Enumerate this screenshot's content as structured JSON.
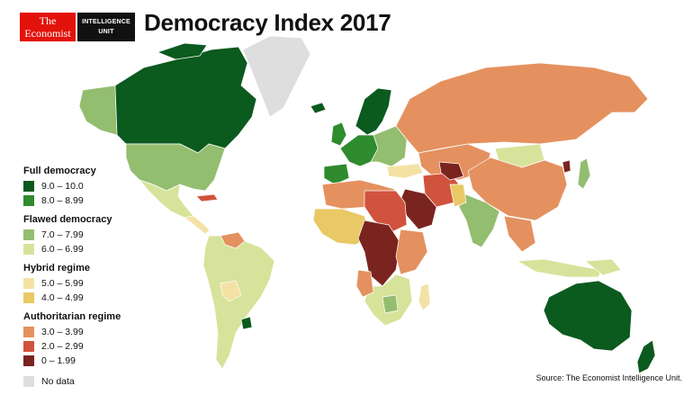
{
  "header": {
    "logo_economist": "The Economist",
    "logo_eiu_line1": "INTELLIGENCE",
    "logo_eiu_line2": "UNIT",
    "title": "Democracy Index 2017"
  },
  "legend": {
    "groups": [
      {
        "heading": "Full democracy",
        "items": [
          {
            "label": "9.0 – 10.0",
            "color": "#0b5a1e"
          },
          {
            "label": "8.0 – 8.99",
            "color": "#2e8b2e"
          }
        ]
      },
      {
        "heading": "Flawed democracy",
        "items": [
          {
            "label": "7.0 – 7.99",
            "color": "#93bd6f"
          },
          {
            "label": "6.0 – 6.99",
            "color": "#d7e39a"
          }
        ]
      },
      {
        "heading": "Hybrid regime",
        "items": [
          {
            "label": "5.0 – 5.99",
            "color": "#f3e2a4"
          },
          {
            "label": "4.0 – 4.99",
            "color": "#e8c965"
          }
        ]
      },
      {
        "heading": "Authoritarian regime",
        "items": [
          {
            "label": "3.0 – 3.99",
            "color": "#e4915f"
          },
          {
            "label": "2.0 – 2.99",
            "color": "#d0533d"
          },
          {
            "label": "0 – 1.99",
            "color": "#7a2420"
          }
        ]
      }
    ],
    "no_data": {
      "label": "No data",
      "color": "#dedede"
    }
  },
  "source": "Source: The Economist Intelligence Unit."
}
